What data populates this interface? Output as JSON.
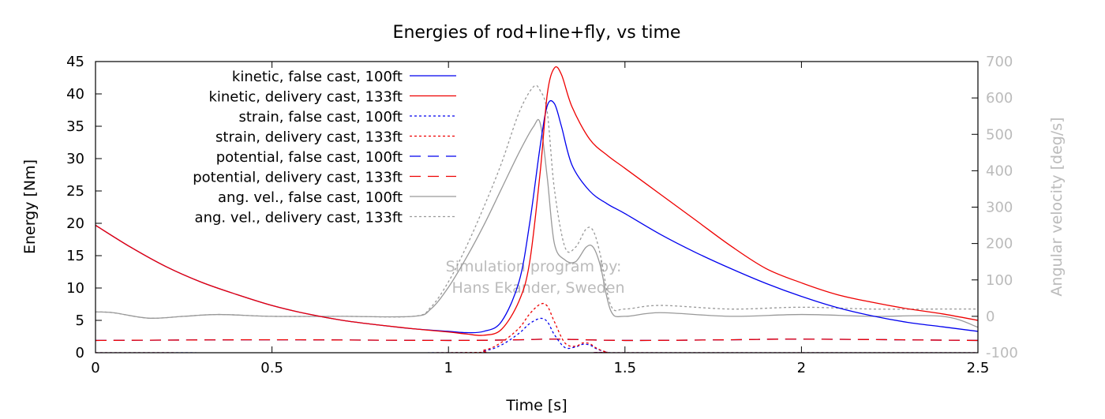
{
  "chart_data": {
    "type": "line",
    "title": "Energies of rod+line+fly, vs time",
    "xlabel": "Time [s]",
    "ylabel": "Energy [Nm]",
    "y2label": "Angular velocity [deg/s]",
    "xlim": [
      0,
      2.5
    ],
    "ylim": [
      0,
      45
    ],
    "y2lim": [
      -100,
      700
    ],
    "xticks": [
      "0",
      "0.5",
      "1",
      "1.5",
      "2",
      "2.5"
    ],
    "xtick_values": [
      0,
      0.5,
      1,
      1.5,
      2,
      2.5
    ],
    "yticks": [
      "0",
      "5",
      "10",
      "15",
      "20",
      "25",
      "30",
      "35",
      "40",
      "45"
    ],
    "ytick_values": [
      0,
      5,
      10,
      15,
      20,
      25,
      30,
      35,
      40,
      45
    ],
    "y2ticks": [
      "-100",
      "0",
      "100",
      "200",
      "300",
      "400",
      "500",
      "600",
      "700"
    ],
    "y2tick_values": [
      -100,
      0,
      100,
      200,
      300,
      400,
      500,
      600,
      700
    ],
    "grid": false,
    "legend_position": "top-left",
    "watermark": [
      "Simulation program by:",
      "Hans Ekander, Sweden"
    ],
    "colors": {
      "blue": "#0000ee",
      "red": "#ee0000",
      "gray": "#999999",
      "text_gray": "#bbbbbb"
    },
    "series": [
      {
        "name": "kinetic, false cast, 100ft",
        "color": "#0000ee",
        "style": "solid",
        "axis": "left",
        "x": [
          0,
          0.1,
          0.2,
          0.3,
          0.4,
          0.5,
          0.6,
          0.7,
          0.8,
          0.9,
          1.0,
          1.05,
          1.1,
          1.15,
          1.2,
          1.23,
          1.26,
          1.28,
          1.3,
          1.32,
          1.35,
          1.4,
          1.45,
          1.5,
          1.6,
          1.7,
          1.8,
          1.9,
          2.0,
          2.1,
          2.2,
          2.3,
          2.4,
          2.5
        ],
        "y": [
          19.7,
          16.3,
          13.3,
          10.9,
          9.0,
          7.3,
          6.0,
          5.0,
          4.3,
          3.7,
          3.3,
          3.1,
          3.3,
          4.8,
          11.0,
          20.0,
          32.0,
          38.2,
          38.5,
          35.0,
          29.0,
          25.0,
          23.0,
          21.5,
          18.3,
          15.5,
          13.0,
          10.7,
          8.7,
          7.0,
          5.7,
          4.7,
          4.0,
          3.3
        ]
      },
      {
        "name": "kinetic, delivery cast, 133ft",
        "color": "#ee0000",
        "style": "solid",
        "axis": "left",
        "x": [
          0,
          0.1,
          0.2,
          0.3,
          0.4,
          0.5,
          0.6,
          0.7,
          0.8,
          0.9,
          1.0,
          1.05,
          1.1,
          1.15,
          1.2,
          1.23,
          1.26,
          1.28,
          1.3,
          1.32,
          1.35,
          1.4,
          1.45,
          1.5,
          1.6,
          1.7,
          1.8,
          1.9,
          2.0,
          2.1,
          2.2,
          2.3,
          2.4,
          2.5
        ],
        "y": [
          19.7,
          16.3,
          13.3,
          10.9,
          9.0,
          7.3,
          6.0,
          5.0,
          4.3,
          3.7,
          3.2,
          2.9,
          2.7,
          3.6,
          8.0,
          14.0,
          28.0,
          40.0,
          44.0,
          43.0,
          38.0,
          33.0,
          30.5,
          28.5,
          24.5,
          20.5,
          16.5,
          13.0,
          10.8,
          9.0,
          7.8,
          6.8,
          6.0,
          5.0
        ]
      },
      {
        "name": "strain, false cast, 100ft",
        "color": "#0000ee",
        "style": "dotted",
        "axis": "left",
        "x": [
          0,
          1.0,
          1.1,
          1.15,
          1.2,
          1.23,
          1.26,
          1.28,
          1.3,
          1.33,
          1.36,
          1.38,
          1.4,
          1.42,
          1.45,
          1.5,
          2.5
        ],
        "y": [
          0,
          0,
          0.3,
          1.2,
          3.0,
          4.5,
          5.3,
          4.8,
          2.8,
          0.8,
          0.9,
          1.3,
          1.2,
          0.6,
          0.1,
          0,
          0
        ]
      },
      {
        "name": "strain, delivery cast, 133ft",
        "color": "#ee0000",
        "style": "dotted",
        "axis": "left",
        "x": [
          0,
          1.0,
          1.1,
          1.15,
          1.2,
          1.23,
          1.26,
          1.28,
          1.3,
          1.33,
          1.36,
          1.38,
          1.4,
          1.42,
          1.45,
          1.5,
          2.5
        ],
        "y": [
          0,
          0,
          0.4,
          1.6,
          3.8,
          6.0,
          7.5,
          7.2,
          4.8,
          1.5,
          1.0,
          1.5,
          1.4,
          0.7,
          0.1,
          0,
          0
        ]
      },
      {
        "name": "potential, false cast, 100ft",
        "color": "#0000ee",
        "style": "dashed",
        "axis": "left",
        "x": [
          0,
          0.5,
          1.0,
          1.2,
          1.3,
          1.5,
          1.8,
          2.0,
          2.5
        ],
        "y": [
          1.9,
          2.0,
          1.9,
          2.0,
          2.1,
          1.9,
          2.0,
          2.1,
          1.9
        ]
      },
      {
        "name": "potential, delivery cast, 133ft",
        "color": "#ee0000",
        "style": "dashed",
        "axis": "left",
        "x": [
          0,
          0.5,
          1.0,
          1.2,
          1.3,
          1.5,
          1.8,
          2.0,
          2.5
        ],
        "y": [
          1.9,
          2.0,
          1.9,
          2.0,
          2.1,
          1.9,
          2.0,
          2.1,
          1.9
        ]
      },
      {
        "name": "ang. vel., false cast, 100ft",
        "color": "#999999",
        "style": "solid",
        "axis": "right",
        "x": [
          0,
          0.05,
          0.15,
          0.25,
          0.35,
          0.5,
          0.7,
          0.9,
          0.95,
          1.0,
          1.05,
          1.1,
          1.15,
          1.2,
          1.24,
          1.26,
          1.28,
          1.3,
          1.33,
          1.36,
          1.39,
          1.41,
          1.43,
          1.46,
          1.5,
          1.6,
          1.8,
          2.0,
          2.2,
          2.4,
          2.5
        ],
        "y": [
          12,
          10,
          -5,
          0,
          5,
          0,
          0,
          0,
          20,
          80,
          160,
          250,
          350,
          450,
          520,
          530,
          380,
          200,
          155,
          150,
          190,
          190,
          140,
          15,
          0,
          10,
          0,
          5,
          0,
          0,
          -30
        ]
      },
      {
        "name": "ang. vel., delivery cast, 133ft",
        "color": "#999999",
        "style": "dotted",
        "axis": "right",
        "x": [
          0,
          0.05,
          0.15,
          0.25,
          0.35,
          0.5,
          0.7,
          0.9,
          0.95,
          1.0,
          1.05,
          1.1,
          1.15,
          1.2,
          1.24,
          1.26,
          1.28,
          1.3,
          1.33,
          1.36,
          1.39,
          1.41,
          1.43,
          1.46,
          1.5,
          1.6,
          1.8,
          2.0,
          2.2,
          2.4,
          2.5
        ],
        "y": [
          12,
          10,
          -5,
          0,
          5,
          0,
          0,
          0,
          25,
          95,
          190,
          300,
          420,
          560,
          630,
          620,
          560,
          350,
          190,
          190,
          240,
          235,
          170,
          30,
          20,
          30,
          20,
          25,
          20,
          20,
          20
        ]
      }
    ]
  }
}
